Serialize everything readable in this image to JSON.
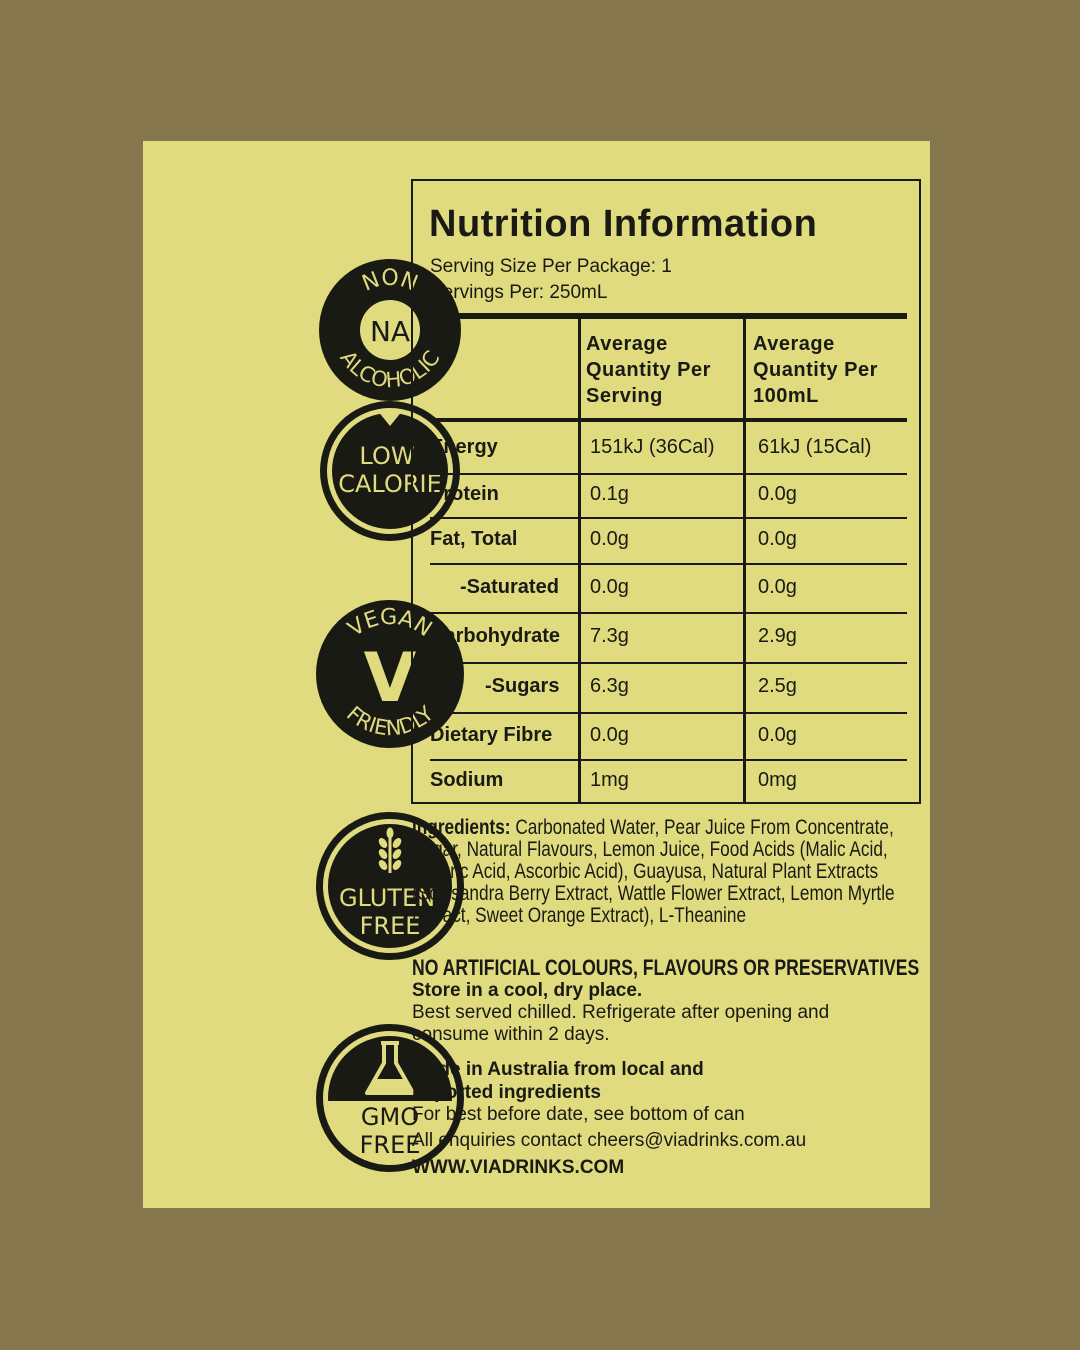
{
  "badges": [
    {
      "top": "NON",
      "center": "NA",
      "bottom": "ALCOHOLIC"
    },
    {
      "lines": [
        "LOW",
        "CALORIE"
      ]
    },
    {
      "top": "VEGAN",
      "center": "V",
      "bottom": "FRIENDLY"
    },
    {
      "lines": [
        "GLUTEN",
        "FREE"
      ],
      "icon": "wheat-icon"
    },
    {
      "lines": [
        "GMO",
        "FREE"
      ],
      "icon": "flask-icon"
    }
  ],
  "nutrition": {
    "title": "Nutrition Information",
    "serving_size": "Serving Size Per Package: 1",
    "servings_per": "Servings Per: 250mL",
    "headers": [
      "",
      "Average Quantity Per Serving",
      "Average Quantity Per 100mL"
    ],
    "rows": [
      {
        "name": "Energy",
        "serving": "151kJ (36Cal)",
        "per100": "61kJ (15Cal)"
      },
      {
        "name": "Protein",
        "serving": "0.1g",
        "per100": "0.0g"
      },
      {
        "name": "Fat, Total",
        "serving": "0.0g",
        "per100": "0.0g"
      },
      {
        "name": "-Saturated",
        "serving": "0.0g",
        "per100": "0.0g"
      },
      {
        "name": "Carbohydrate",
        "serving": "7.3g",
        "per100": "2.9g"
      },
      {
        "name": "-Sugars",
        "serving": "6.3g",
        "per100": "2.5g"
      },
      {
        "name": "Dietary Fibre",
        "serving": "0.0g",
        "per100": "0.0g"
      },
      {
        "name": "Sodium",
        "serving": "1mg",
        "per100": "0mg"
      }
    ]
  },
  "ingredients": {
    "label": "Ingredients:",
    "text": "Carbonated Water, Pear Juice From Concentrate, Sugar, Natural Flavours, Lemon Juice, Food Acids (Malic Acid, Tartaric Acid, Ascorbic Acid), Guayusa, Natural Plant Extracts (Schisandra Berry Extract, Wattle Flower Extract, Lemon Myrtle Extract, Sweet Orange Extract), L-Theanine"
  },
  "notes": {
    "no_artificial": "NO ARTIFICIAL COLOURS, FLAVOURS OR PRESERVATIVES",
    "store": "Store in a cool, dry place.",
    "serve": "Best served chilled. Refrigerate after opening and consume within 2 days.",
    "made": "Made in Australia from local and imported ingredients",
    "best_before": "For best before date, see bottom of can",
    "enquiries": "All enquiries contact cheers@viadrinks.com.au",
    "website": "WWW.VIADRINKS.COM"
  },
  "colors": {
    "background": "#85764e",
    "label": "#e0db7e",
    "ink": "#1a1a14"
  }
}
